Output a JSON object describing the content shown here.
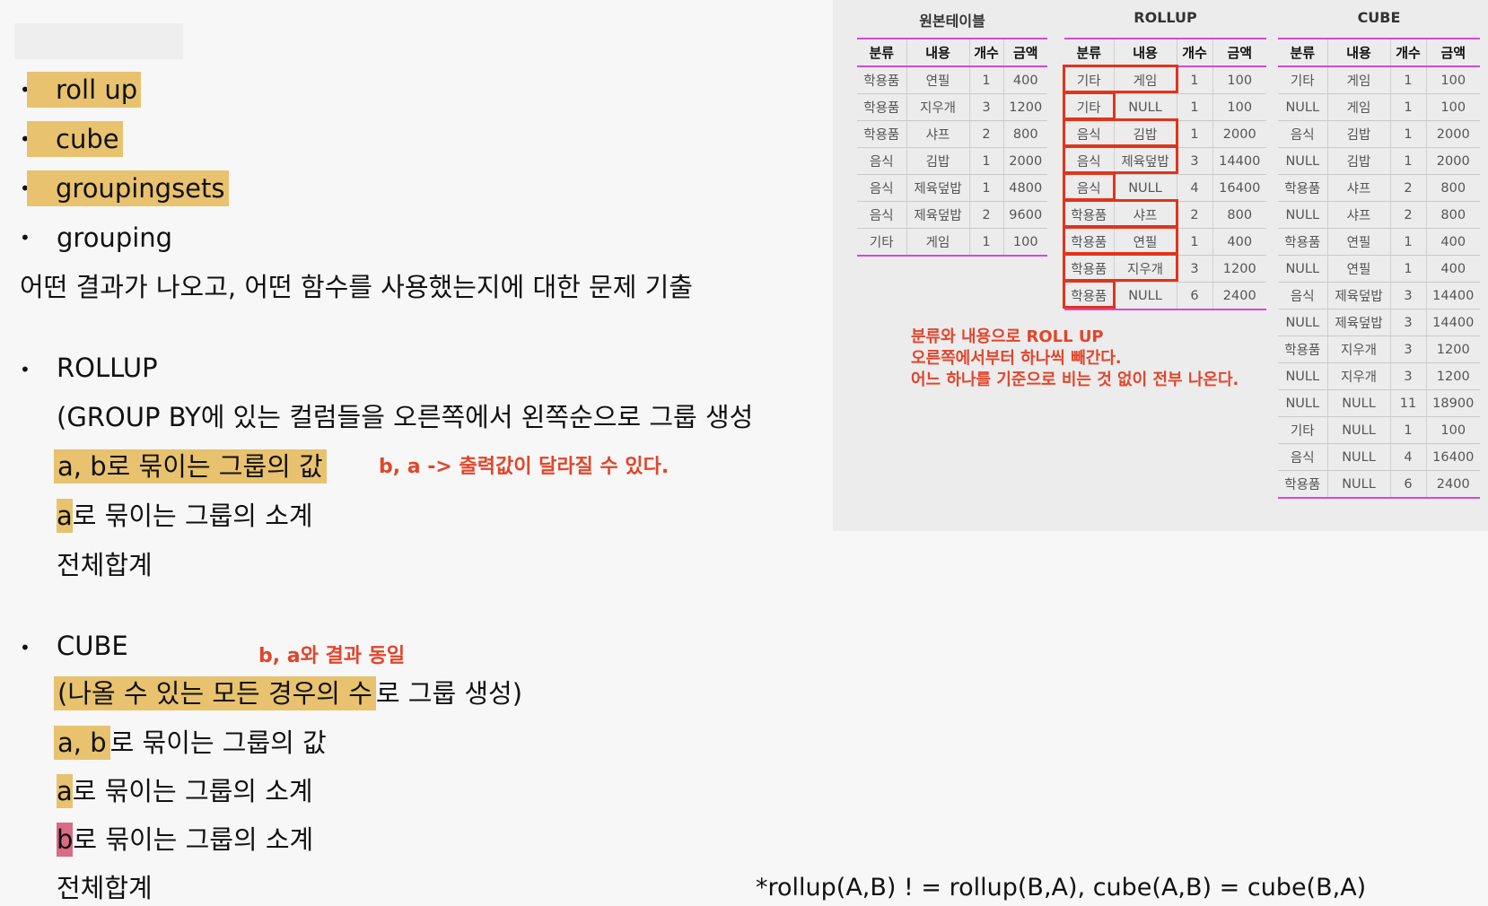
{
  "notes": {
    "bullets": [
      "roll up",
      "cube",
      "groupingsets",
      "grouping"
    ],
    "summary": "어떤 결과가 나오고, 어떤 함수를 사용했는지에 대한 문제 기출",
    "rollup": {
      "title": "ROLLUP",
      "desc": "(GROUP BY에 있는 컬럼들을 오른쪽에서 왼쪽순으로 그룹 생성",
      "line1": "a, b로 묶이는 그룹의 값",
      "line1_note": "b, a -> 출력값이 달라질 수 있다.",
      "line2_a": "a",
      "line2_rest": "로 묶이는 그룹의 소계",
      "line3": "전체합계"
    },
    "cube": {
      "title": "CUBE",
      "annotation": "b, a와 결과 동일",
      "desc_hl": "(나올 수 있는 모든 경우의 수",
      "desc_rest": "로 그룹 생성)",
      "line1_hl": "a, b",
      "line1_rest": "로 묶이는 그룹의 값",
      "line2_a": "a",
      "line2_rest": "로 묶이는 그룹의 소계",
      "line3_b": "b",
      "line3_rest": "로 묶이는 그룹의 소계",
      "line4": "전체합계"
    },
    "footer": "*rollup(A,B)  ! = rollup(B,A),  cube(A,B) = cube(B,A)"
  },
  "tables": {
    "columns": [
      "분류",
      "내용",
      "개수",
      "금액"
    ],
    "original": {
      "title": "원본테이블",
      "rows": [
        [
          "학용품",
          "연필",
          "1",
          "400"
        ],
        [
          "학용품",
          "지우개",
          "3",
          "1200"
        ],
        [
          "학용품",
          "샤프",
          "2",
          "800"
        ],
        [
          "음식",
          "김밥",
          "1",
          "2000"
        ],
        [
          "음식",
          "제육덮밥",
          "1",
          "4800"
        ],
        [
          "음식",
          "제육덮밥",
          "2",
          "9600"
        ],
        [
          "기타",
          "게임",
          "1",
          "100"
        ]
      ]
    },
    "rollup": {
      "title": "ROLLUP",
      "rows": [
        [
          "기타",
          "게임",
          "1",
          "100"
        ],
        [
          "기타",
          "NULL",
          "1",
          "100"
        ],
        [
          "음식",
          "김밥",
          "1",
          "2000"
        ],
        [
          "음식",
          "제육덮밥",
          "3",
          "14400"
        ],
        [
          "음식",
          "NULL",
          "4",
          "16400"
        ],
        [
          "학용품",
          "샤프",
          "2",
          "800"
        ],
        [
          "학용품",
          "연필",
          "1",
          "400"
        ],
        [
          "학용품",
          "지우개",
          "3",
          "1200"
        ],
        [
          "학용품",
          "NULL",
          "6",
          "2400"
        ]
      ]
    },
    "cube": {
      "title": "CUBE",
      "rows": [
        [
          "기타",
          "게임",
          "1",
          "100"
        ],
        [
          "NULL",
          "게임",
          "1",
          "100"
        ],
        [
          "음식",
          "김밥",
          "1",
          "2000"
        ],
        [
          "NULL",
          "김밥",
          "1",
          "2000"
        ],
        [
          "학용품",
          "샤프",
          "2",
          "800"
        ],
        [
          "NULL",
          "샤프",
          "2",
          "800"
        ],
        [
          "학용품",
          "연필",
          "1",
          "400"
        ],
        [
          "NULL",
          "연필",
          "1",
          "400"
        ],
        [
          "음식",
          "제육덮밥",
          "3",
          "14400"
        ],
        [
          "NULL",
          "제육덮밥",
          "3",
          "14400"
        ],
        [
          "학용품",
          "지우개",
          "3",
          "1200"
        ],
        [
          "NULL",
          "지우개",
          "3",
          "1200"
        ],
        [
          "NULL",
          "NULL",
          "11",
          "18900"
        ],
        [
          "기타",
          "NULL",
          "1",
          "100"
        ],
        [
          "음식",
          "NULL",
          "4",
          "16400"
        ],
        [
          "학용품",
          "NULL",
          "6",
          "2400"
        ]
      ]
    },
    "rollup_note": [
      "분류와 내용으로 ROLL UP",
      "오른쪽에서부터 하나씩 빼간다.",
      "어느 하나를 기준으로 비는 것 없이 전부 나온다."
    ]
  },
  "colors": {
    "highlight": "#e8c26e",
    "pink": "#d96b84",
    "annotation": "#e2452b",
    "table_rule": "#d34ad3"
  }
}
